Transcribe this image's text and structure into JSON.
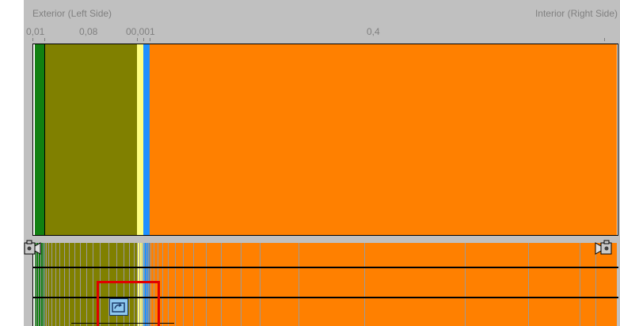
{
  "header": {
    "exterior_label": "Exterior (Left Side)",
    "interior_label": "Interior (Right Side)"
  },
  "scale_labels": [
    {
      "text": "0,01"
    },
    {
      "text": "0,08"
    },
    {
      "text": "00,001"
    },
    {
      "text": "0,4"
    }
  ],
  "layers": [
    {
      "name": "layer-1",
      "color": "#ffffff",
      "thickness_share": 0.003
    },
    {
      "name": "layer-2",
      "color": "#118011",
      "thickness_share": 0.016
    },
    {
      "name": "layer-3",
      "color": "#808000",
      "thickness_share": 0.159
    },
    {
      "name": "layer-4",
      "color": "#ffff80",
      "thickness_share": 0.011
    },
    {
      "name": "layer-5",
      "color": "#1e90ff",
      "thickness_share": 0.011
    },
    {
      "name": "layer-6",
      "color": "#ff8000",
      "thickness_share": 0.8
    }
  ],
  "icons": {
    "left_handle": "camera-left-icon",
    "right_handle": "camera-right-icon",
    "probe": "probe-icon"
  }
}
